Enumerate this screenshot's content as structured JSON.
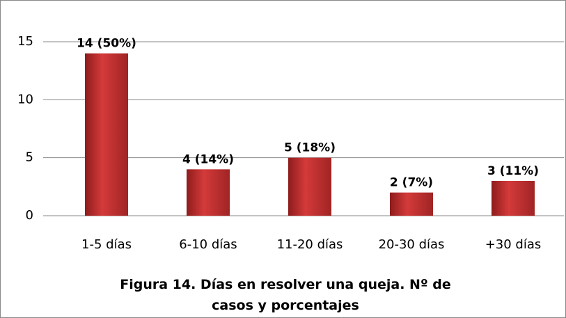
{
  "chart_data": {
    "type": "bar",
    "title": "Figura 14. Días en resolver una queja. Nº de casos y porcentajes",
    "categories": [
      "1-5 días",
      "6-10 días",
      "11-20 días",
      "20-30 días",
      "+30 días"
    ],
    "values": [
      14,
      4,
      5,
      2,
      3
    ],
    "value_labels": [
      "14 (50%)",
      "4 (14%)",
      "5 (18%)",
      "2 (7%)",
      "3 (11%)"
    ],
    "color": "#d43a3a",
    "ylim": [
      0,
      15
    ],
    "yticks": [
      0,
      5,
      10,
      15
    ],
    "grid": true
  }
}
